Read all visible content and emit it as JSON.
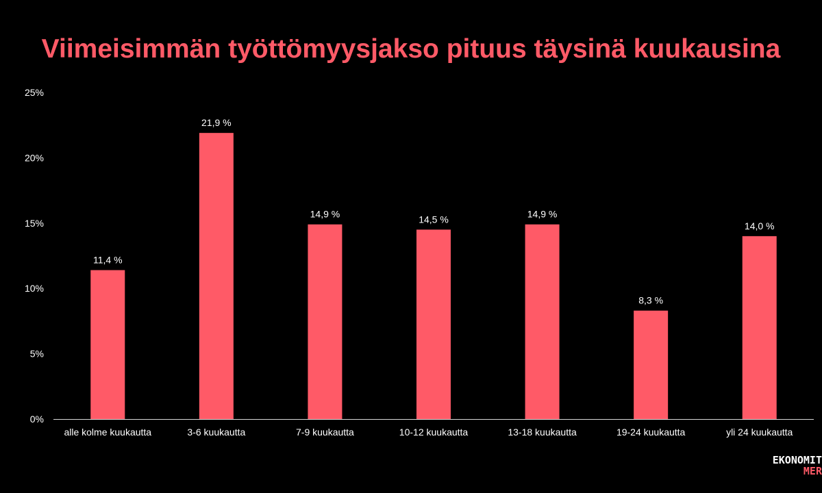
{
  "chart_data": {
    "type": "bar",
    "title": "Viimeisimmän työttömyysjakso pituus täysinä kuukausina",
    "categories": [
      "alle kolme kuukautta",
      "3-6 kuukautta",
      "7-9 kuukautta",
      "10-12 kuukautta",
      "13-18 kuukautta",
      "19-24 kuukautta",
      "yli 24 kuukautta"
    ],
    "values": [
      11.4,
      21.9,
      14.9,
      14.5,
      14.9,
      8.3,
      14.0
    ],
    "data_labels": [
      "11,4 %",
      "21,9 %",
      "14,9 %",
      "14,5 %",
      "14,9 %",
      "8,3 %",
      "14,0 %"
    ],
    "y_ticks": [
      0,
      5,
      10,
      15,
      20,
      25
    ],
    "y_tick_labels": [
      "0%",
      "5%",
      "10%",
      "15%",
      "20%",
      "25%"
    ],
    "ylim": [
      0,
      25
    ],
    "xlabel": "",
    "ylabel": "",
    "grid": false,
    "legend": "none"
  },
  "colors": {
    "background": "#000000",
    "bar": "#ff5a67",
    "title": "#ff5a67",
    "text": "#ffffff",
    "axis": "#d9d9d9",
    "logo_top": "#ffffff",
    "logo_bottom": "#ff5a67"
  },
  "logo": {
    "line1": "EKONOMIT",
    "line2": "MER"
  }
}
